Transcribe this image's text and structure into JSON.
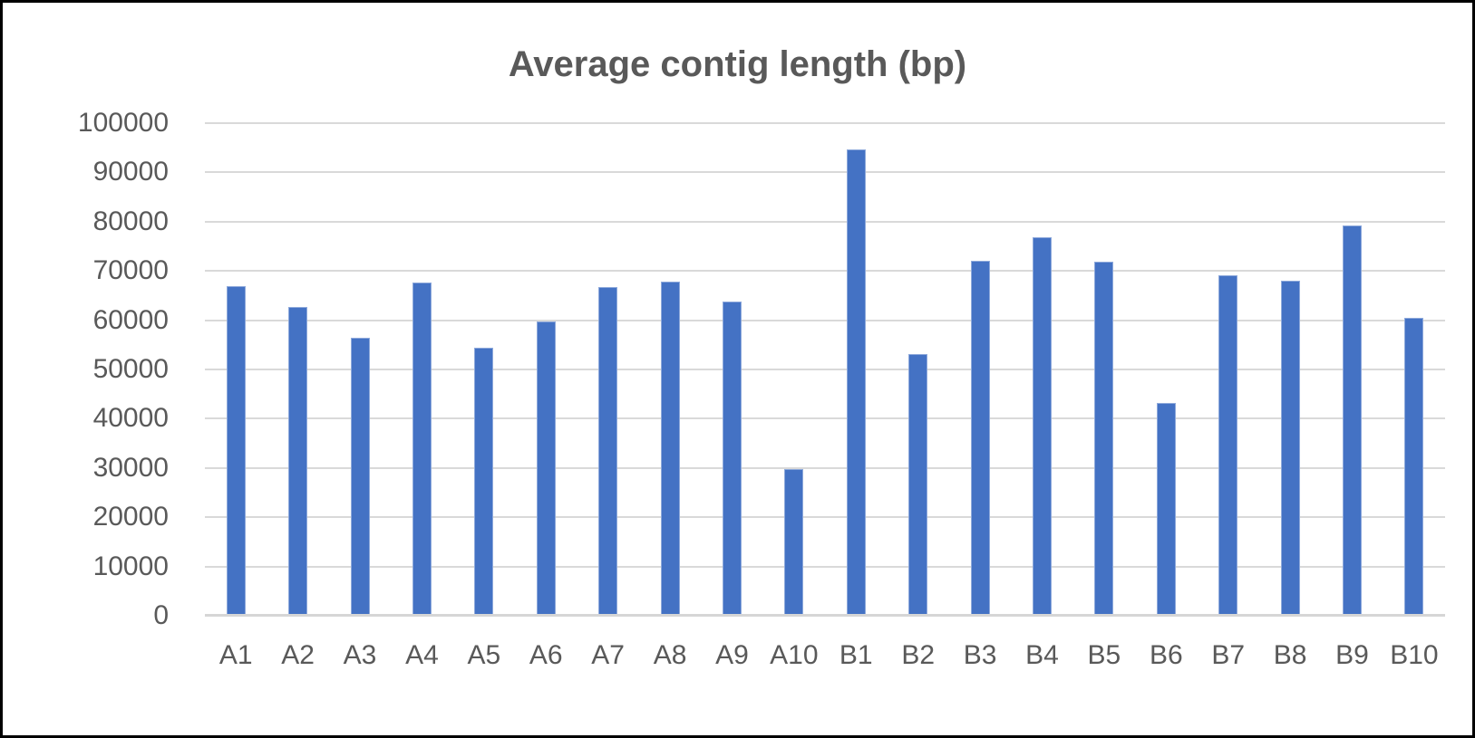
{
  "chart_data": {
    "type": "bar",
    "title": "Average contig length (bp)",
    "categories": [
      "A1",
      "A2",
      "A3",
      "A4",
      "A5",
      "A6",
      "A7",
      "A8",
      "A9",
      "A10",
      "B1",
      "B2",
      "B3",
      "B4",
      "B5",
      "B6",
      "B7",
      "B8",
      "B9",
      "B10"
    ],
    "values": [
      66900,
      62700,
      56400,
      67600,
      54400,
      59700,
      66800,
      67800,
      63800,
      29700,
      94600,
      53200,
      72000,
      76800,
      71800,
      43200,
      69100,
      68000,
      79200,
      60500
    ],
    "xlabel": "",
    "ylabel": "",
    "ylim": [
      0,
      100000
    ],
    "ytick_step": 10000,
    "ytick_labels": [
      "100000",
      "90000",
      "80000",
      "70000",
      "60000",
      "50000",
      "40000",
      "30000",
      "20000",
      "10000",
      "0"
    ],
    "grid": true,
    "legend_position": "none",
    "colors": {
      "bar": "#4472C4",
      "bar_edge": "#8EA9DB",
      "gridline": "#D9D9D9",
      "axis_line": "#D6D6D6",
      "text": "#595959",
      "frame_border": "#000000",
      "background": "#FFFFFF"
    }
  }
}
